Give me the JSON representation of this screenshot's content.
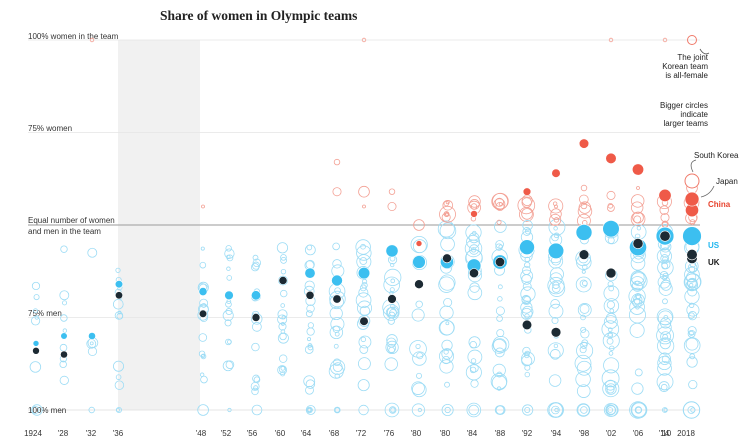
{
  "chart_data": {
    "type": "scatter",
    "title": "Share of women in Olympic teams",
    "y_labels": {
      "top": "100% women in the team",
      "upper": "75% women",
      "equal_line1": "Equal number of women",
      "equal_line2": "and men in the team",
      "lower": "75% men",
      "bottom": "100% men"
    },
    "ylim": [
      0,
      100
    ],
    "x_ticks": [
      "1924",
      "'28",
      "'32",
      "'36",
      "'48",
      "'52",
      "'56",
      "'60",
      "'64",
      "'68",
      "'72",
      "'76",
      "'80",
      "'80",
      "'84",
      "'88",
      "'92",
      "'94",
      "'98",
      "'02",
      "'06",
      "'10",
      "'14",
      "2018"
    ],
    "x_years": [
      1924,
      1928,
      1932,
      1936,
      1948,
      1952,
      1956,
      1960,
      1964,
      1968,
      1972,
      1976,
      1980,
      1980,
      1984,
      1988,
      1992,
      1994,
      1998,
      2002,
      2006,
      2010,
      2014,
      2018
    ],
    "gap": {
      "from": 1936,
      "to": 1948
    },
    "annotations": [
      {
        "lines": [
          "The joint",
          "Korean team",
          "is all-female"
        ]
      },
      {
        "lines": [
          "Bigger circles",
          "indicate",
          "larger teams"
        ]
      }
    ],
    "highlighted_teams": [
      {
        "name": "South Korea",
        "color": "#888888"
      },
      {
        "name": "Japan",
        "color": "#444444"
      },
      {
        "name": "China",
        "color": "#e8432e"
      },
      {
        "name": "US",
        "color": "#1fb6ef"
      },
      {
        "name": "UK",
        "color": "#1a1a1a"
      }
    ],
    "colors": {
      "men_majority": "#5bc8f0",
      "women_majority": "#f07a6a",
      "us": "#3cbff0",
      "uk": "#1c2a33",
      "china": "#ef5a48"
    },
    "series": [
      {
        "name": "US",
        "values": [
          {
            "x": 1924,
            "y": 18
          },
          {
            "x": 1928,
            "y": 20
          },
          {
            "x": 1932,
            "y": 20
          },
          {
            "x": 1936,
            "y": 34
          },
          {
            "x": 1948,
            "y": 32
          },
          {
            "x": 1952,
            "y": 31
          },
          {
            "x": 1956,
            "y": 31
          },
          {
            "x": 1960,
            "y": 35
          },
          {
            "x": 1964,
            "y": 37
          },
          {
            "x": 1968,
            "y": 35
          },
          {
            "x": 1972,
            "y": 37
          },
          {
            "x": 1976,
            "y": 43
          },
          {
            "x": 1980,
            "y": 40
          },
          {
            "x": 1980.01,
            "y": 40
          },
          {
            "x": 1984,
            "y": 39
          },
          {
            "x": 1988,
            "y": 40
          },
          {
            "x": 1992,
            "y": 44
          },
          {
            "x": 1994,
            "y": 43
          },
          {
            "x": 1998,
            "y": 48
          },
          {
            "x": 2002,
            "y": 49
          },
          {
            "x": 2006,
            "y": 44
          },
          {
            "x": 2010,
            "y": 47
          },
          {
            "x": 2014,
            "y": 47
          },
          {
            "x": 2018,
            "y": 47
          }
        ]
      },
      {
        "name": "UK",
        "values": [
          {
            "x": 1924,
            "y": 16
          },
          {
            "x": 1928,
            "y": 15
          },
          {
            "x": 1936,
            "y": 31
          },
          {
            "x": 1948,
            "y": 26
          },
          {
            "x": 1956,
            "y": 25
          },
          {
            "x": 1960,
            "y": 35
          },
          {
            "x": 1964,
            "y": 31
          },
          {
            "x": 1968,
            "y": 30
          },
          {
            "x": 1972,
            "y": 24
          },
          {
            "x": 1976,
            "y": 30
          },
          {
            "x": 1980,
            "y": 34
          },
          {
            "x": 1980.01,
            "y": 41
          },
          {
            "x": 1984,
            "y": 37
          },
          {
            "x": 1988,
            "y": 40
          },
          {
            "x": 1992,
            "y": 23
          },
          {
            "x": 1994,
            "y": 21
          },
          {
            "x": 1998,
            "y": 42
          },
          {
            "x": 2002,
            "y": 37
          },
          {
            "x": 2006,
            "y": 45
          },
          {
            "x": 2010,
            "y": 47
          },
          {
            "x": 2014,
            "y": 41
          },
          {
            "x": 2018,
            "y": 42
          }
        ]
      },
      {
        "name": "China",
        "values": [
          {
            "x": 1980,
            "y": 45
          },
          {
            "x": 1984,
            "y": 53
          },
          {
            "x": 1992,
            "y": 59
          },
          {
            "x": 1994,
            "y": 64
          },
          {
            "x": 1998,
            "y": 72
          },
          {
            "x": 2002,
            "y": 68
          },
          {
            "x": 2006,
            "y": 65
          },
          {
            "x": 2010,
            "y": 58
          },
          {
            "x": 2014,
            "y": 54
          },
          {
            "x": 2018,
            "y": 57
          }
        ]
      }
    ]
  }
}
